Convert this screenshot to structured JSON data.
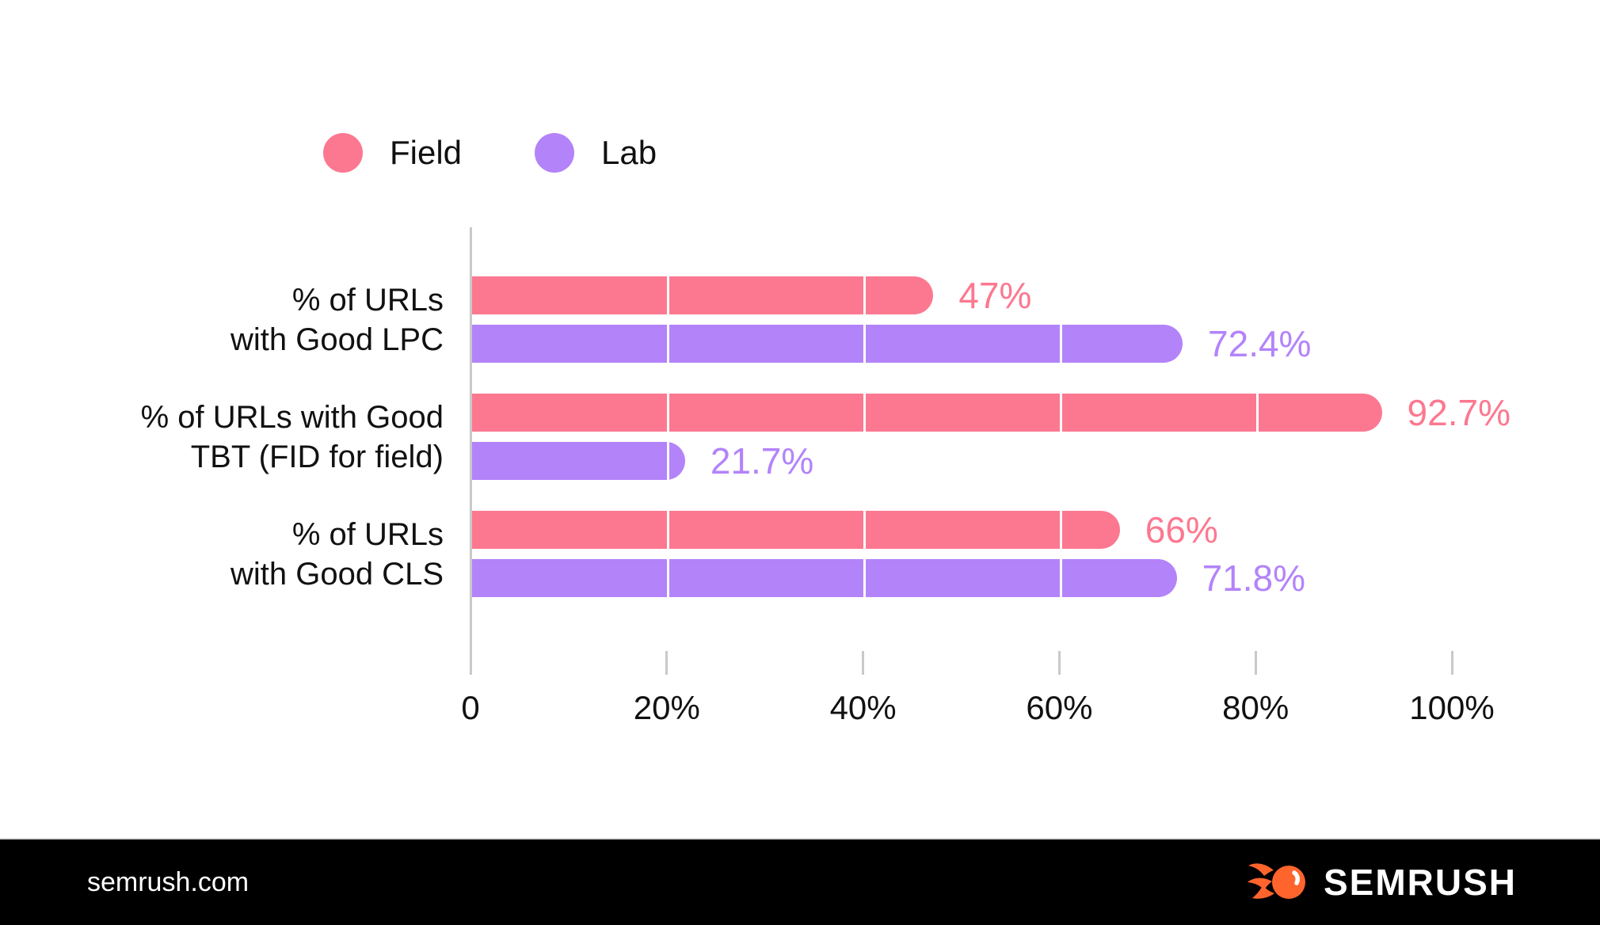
{
  "chart_data": {
    "type": "bar",
    "orientation": "horizontal",
    "title": "",
    "categories": [
      "% of URLs with Good LPC",
      "% of URLs with Good TBT (FID for field)",
      "% of URLs with Good CLS"
    ],
    "category_label_lines": [
      [
        "% of URLs",
        "with Good LPC"
      ],
      [
        "% of URLs with Good",
        "TBT (FID for field)"
      ],
      [
        "% of URLs",
        "with Good CLS"
      ]
    ],
    "series": [
      {
        "name": "Field",
        "color": "#FC7890",
        "values": [
          47,
          92.7,
          66
        ],
        "value_labels": [
          "47%",
          "92.7%",
          "66%"
        ]
      },
      {
        "name": "Lab",
        "color": "#B383FA",
        "values": [
          72.4,
          21.7,
          71.8
        ],
        "value_labels": [
          "72.4%",
          "21.7%",
          "71.8%"
        ]
      }
    ],
    "x_axis": {
      "range": [
        0,
        100
      ],
      "tick_values": [
        0,
        20,
        40,
        60,
        80,
        100
      ],
      "tick_labels": [
        "0",
        "20%",
        "40%",
        "60%",
        "80%",
        "100%"
      ]
    },
    "legend": {
      "position": "top-left",
      "items": [
        {
          "label": "Field",
          "color": "#FC7890"
        },
        {
          "label": "Lab",
          "color": "#B383FA"
        }
      ]
    },
    "grid": {
      "vertical_lines_over_bars": true,
      "line_color": "#FFFFFF"
    },
    "axis_line_color": "#C9C9C9"
  },
  "colors": {
    "background": "#FFFFFF",
    "text": "#111111",
    "axis_gray": "#C9C9C9",
    "footer_background": "#000000",
    "brand_orange": "#FF642D"
  },
  "footer": {
    "site_label": "semrush.com",
    "brand_name": "SEMRUSH"
  }
}
